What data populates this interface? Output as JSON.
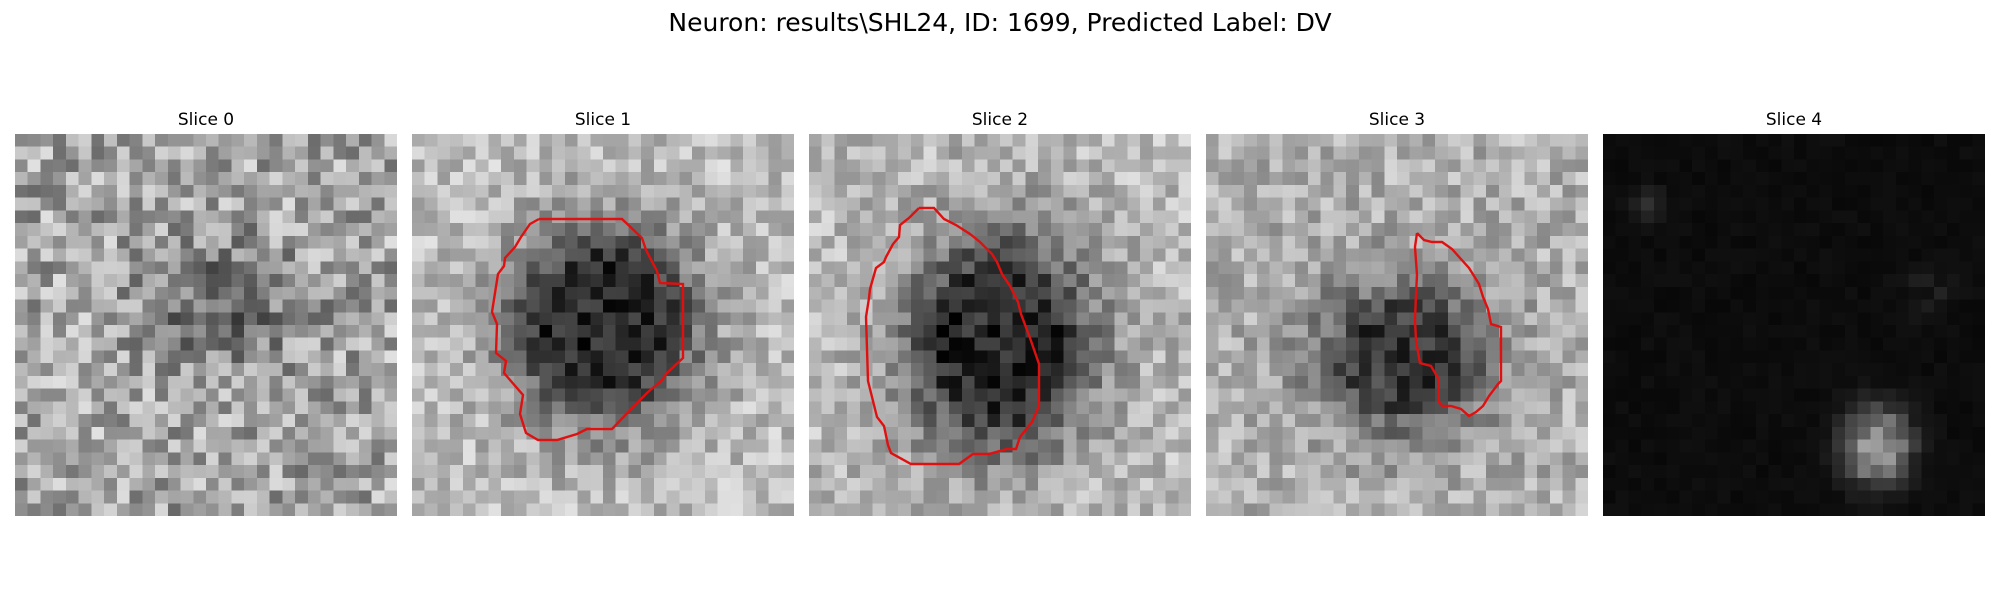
{
  "figure": {
    "title": "Neuron: results\\SHL24, ID: 1699, Predicted Label: DV",
    "contour_color": "#e01010"
  },
  "panels": [
    {
      "label": "Slice 0",
      "has_contour": false
    },
    {
      "label": "Slice 1",
      "has_contour": true
    },
    {
      "label": "Slice 2",
      "has_contour": true
    },
    {
      "label": "Slice 3",
      "has_contour": true
    },
    {
      "label": "Slice 4",
      "has_contour": false
    }
  ]
}
